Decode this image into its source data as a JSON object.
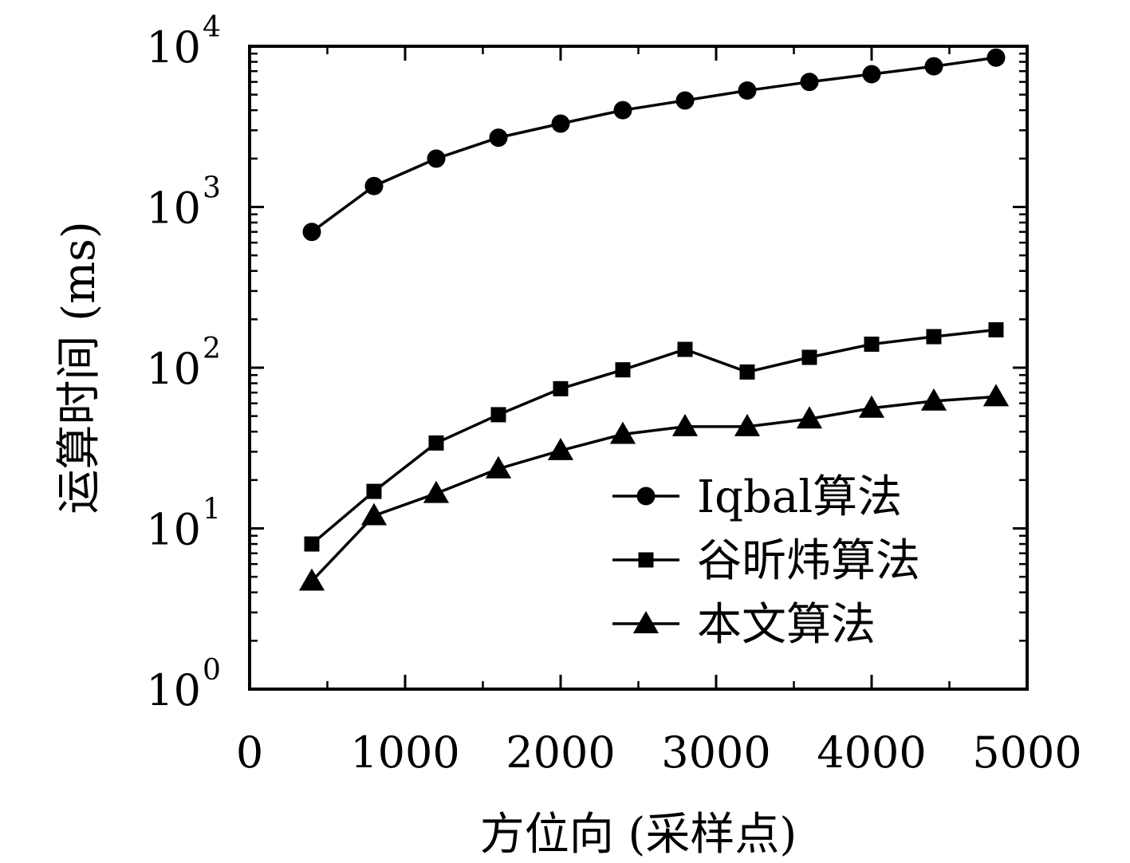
{
  "chart_data": {
    "type": "line",
    "xlabel": "方位向 (采样点)",
    "ylabel": "运算时间 (ms)",
    "xlim": [
      0,
      5000
    ],
    "ylim": [
      1,
      10000
    ],
    "yscale": "log",
    "x_ticks": [
      0,
      1000,
      2000,
      3000,
      4000,
      5000
    ],
    "x_tick_labels": [
      "0",
      "1000",
      "2000",
      "3000",
      "4000",
      "5000"
    ],
    "y_ticks": [
      1,
      10,
      100,
      1000,
      10000
    ],
    "y_tick_labels": [
      {
        "base": "10",
        "exp": "0"
      },
      {
        "base": "10",
        "exp": "1"
      },
      {
        "base": "10",
        "exp": "2"
      },
      {
        "base": "10",
        "exp": "3"
      },
      {
        "base": "10",
        "exp": "4"
      }
    ],
    "x": [
      400,
      800,
      1200,
      1600,
      2000,
      2400,
      2800,
      3200,
      3600,
      4000,
      4400,
      4800
    ],
    "series": [
      {
        "name": "Iqbal算法",
        "marker": "circle",
        "values": [
          700,
          1350,
          2000,
          2700,
          3300,
          4000,
          4600,
          5300,
          6000,
          6700,
          7500,
          8500
        ]
      },
      {
        "name": "谷昕炜算法",
        "marker": "square",
        "values": [
          8,
          17,
          34,
          51,
          74,
          97,
          130,
          94,
          116,
          140,
          156,
          172
        ]
      },
      {
        "name": "本文算法",
        "marker": "triangle",
        "values": [
          4.7,
          12,
          16.5,
          23.5,
          30.5,
          38.5,
          43,
          43,
          48,
          56,
          62,
          66
        ]
      }
    ],
    "grid": false,
    "legend_position": "lower-right",
    "line_color": "#000000"
  }
}
